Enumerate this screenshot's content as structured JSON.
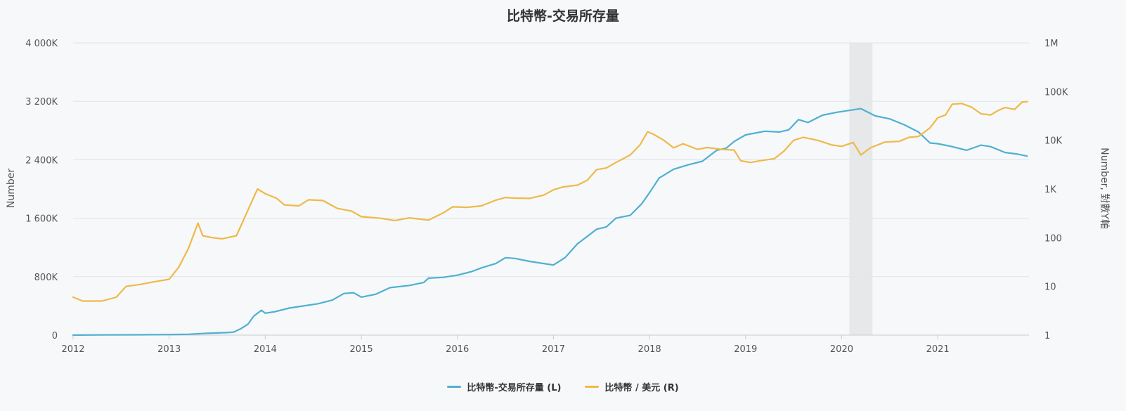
{
  "chart_data": {
    "type": "line",
    "title": "比特幣-交易所存量",
    "y_left": {
      "label": "Number",
      "range": [
        0,
        4000000
      ],
      "ticks": [
        0,
        800000,
        1600000,
        2400000,
        3200000,
        4000000
      ],
      "tick_labels": [
        "0",
        "800K",
        "1 600K",
        "2 400K",
        "3 200K",
        "4 000K"
      ]
    },
    "y_right": {
      "label": "Number, 對數Y軸",
      "scale": "log",
      "range": [
        1,
        1000000
      ],
      "ticks": [
        1,
        10,
        100,
        1000,
        10000,
        100000,
        1000000
      ],
      "tick_labels": [
        "1",
        "10",
        "100",
        "1K",
        "10K",
        "100K",
        "1M"
      ]
    },
    "x_axis": {
      "range": [
        2012,
        2021.95
      ],
      "ticks": [
        2012,
        2013,
        2014,
        2015,
        2016,
        2017,
        2018,
        2019,
        2020,
        2021
      ],
      "tick_labels": [
        "2012",
        "2013",
        "2014",
        "2015",
        "2016",
        "2017",
        "2018",
        "2019",
        "2020",
        "2021"
      ]
    },
    "grid": true,
    "shaded_band": [
      2020.08,
      2020.32
    ],
    "legend_position": "bottom-center",
    "series": [
      {
        "name": "比特幣-交易所存量 (L)",
        "axis": "left",
        "color": "#4fb0d0",
        "points": [
          [
            2012.0,
            0
          ],
          [
            2012.3,
            3000
          ],
          [
            2012.7,
            5000
          ],
          [
            2013.0,
            8000
          ],
          [
            2013.2,
            12000
          ],
          [
            2013.4,
            25000
          ],
          [
            2013.6,
            35000
          ],
          [
            2013.67,
            40000
          ],
          [
            2013.75,
            90000
          ],
          [
            2013.82,
            150000
          ],
          [
            2013.88,
            260000
          ],
          [
            2013.96,
            340000
          ],
          [
            2014.0,
            300000
          ],
          [
            2014.1,
            320000
          ],
          [
            2014.25,
            370000
          ],
          [
            2014.4,
            400000
          ],
          [
            2014.55,
            430000
          ],
          [
            2014.7,
            480000
          ],
          [
            2014.82,
            570000
          ],
          [
            2014.92,
            580000
          ],
          [
            2015.0,
            520000
          ],
          [
            2015.15,
            560000
          ],
          [
            2015.3,
            650000
          ],
          [
            2015.5,
            680000
          ],
          [
            2015.65,
            720000
          ],
          [
            2015.7,
            780000
          ],
          [
            2015.85,
            790000
          ],
          [
            2016.0,
            820000
          ],
          [
            2016.15,
            870000
          ],
          [
            2016.25,
            920000
          ],
          [
            2016.4,
            980000
          ],
          [
            2016.5,
            1060000
          ],
          [
            2016.6,
            1050000
          ],
          [
            2016.75,
            1010000
          ],
          [
            2016.9,
            980000
          ],
          [
            2017.0,
            960000
          ],
          [
            2017.12,
            1060000
          ],
          [
            2017.25,
            1250000
          ],
          [
            2017.35,
            1350000
          ],
          [
            2017.45,
            1450000
          ],
          [
            2017.55,
            1480000
          ],
          [
            2017.65,
            1600000
          ],
          [
            2017.8,
            1640000
          ],
          [
            2017.92,
            1800000
          ],
          [
            2018.0,
            1950000
          ],
          [
            2018.1,
            2150000
          ],
          [
            2018.25,
            2270000
          ],
          [
            2018.4,
            2330000
          ],
          [
            2018.55,
            2380000
          ],
          [
            2018.7,
            2530000
          ],
          [
            2018.8,
            2560000
          ],
          [
            2018.88,
            2650000
          ],
          [
            2019.0,
            2740000
          ],
          [
            2019.2,
            2790000
          ],
          [
            2019.35,
            2780000
          ],
          [
            2019.45,
            2810000
          ],
          [
            2019.55,
            2950000
          ],
          [
            2019.65,
            2910000
          ],
          [
            2019.8,
            3010000
          ],
          [
            2019.95,
            3050000
          ],
          [
            2020.1,
            3080000
          ],
          [
            2020.2,
            3100000
          ],
          [
            2020.35,
            3000000
          ],
          [
            2020.5,
            2960000
          ],
          [
            2020.65,
            2880000
          ],
          [
            2020.8,
            2780000
          ],
          [
            2020.92,
            2630000
          ],
          [
            2021.0,
            2620000
          ],
          [
            2021.15,
            2580000
          ],
          [
            2021.3,
            2530000
          ],
          [
            2021.45,
            2600000
          ],
          [
            2021.55,
            2580000
          ],
          [
            2021.7,
            2500000
          ],
          [
            2021.82,
            2480000
          ],
          [
            2021.93,
            2450000
          ]
        ]
      },
      {
        "name": "比特幣 / 美元 (R)",
        "axis": "right",
        "color": "#efb94a",
        "points": [
          [
            2012.0,
            6
          ],
          [
            2012.1,
            5
          ],
          [
            2012.3,
            5
          ],
          [
            2012.45,
            6
          ],
          [
            2012.55,
            10
          ],
          [
            2012.7,
            11
          ],
          [
            2012.8,
            12
          ],
          [
            2012.9,
            13
          ],
          [
            2013.0,
            14
          ],
          [
            2013.1,
            25
          ],
          [
            2013.2,
            60
          ],
          [
            2013.3,
            200
          ],
          [
            2013.35,
            110
          ],
          [
            2013.45,
            100
          ],
          [
            2013.55,
            95
          ],
          [
            2013.7,
            110
          ],
          [
            2013.85,
            500
          ],
          [
            2013.92,
            1000
          ],
          [
            2014.0,
            800
          ],
          [
            2014.12,
            640
          ],
          [
            2014.2,
            470
          ],
          [
            2014.35,
            450
          ],
          [
            2014.45,
            600
          ],
          [
            2014.6,
            580
          ],
          [
            2014.75,
            400
          ],
          [
            2014.9,
            350
          ],
          [
            2015.0,
            270
          ],
          [
            2015.2,
            250
          ],
          [
            2015.35,
            225
          ],
          [
            2015.5,
            255
          ],
          [
            2015.7,
            230
          ],
          [
            2015.85,
            320
          ],
          [
            2015.95,
            430
          ],
          [
            2016.1,
            420
          ],
          [
            2016.25,
            450
          ],
          [
            2016.4,
            590
          ],
          [
            2016.5,
            670
          ],
          [
            2016.6,
            650
          ],
          [
            2016.75,
            640
          ],
          [
            2016.9,
            750
          ],
          [
            2017.0,
            960
          ],
          [
            2017.1,
            1100
          ],
          [
            2017.25,
            1200
          ],
          [
            2017.35,
            1500
          ],
          [
            2017.45,
            2500
          ],
          [
            2017.55,
            2700
          ],
          [
            2017.65,
            3500
          ],
          [
            2017.8,
            5000
          ],
          [
            2017.9,
            8000
          ],
          [
            2017.98,
            15000
          ],
          [
            2018.05,
            13000
          ],
          [
            2018.15,
            10000
          ],
          [
            2018.25,
            7000
          ],
          [
            2018.35,
            8500
          ],
          [
            2018.5,
            6500
          ],
          [
            2018.6,
            7100
          ],
          [
            2018.75,
            6500
          ],
          [
            2018.88,
            6300
          ],
          [
            2018.95,
            3800
          ],
          [
            2019.05,
            3500
          ],
          [
            2019.15,
            3800
          ],
          [
            2019.3,
            4200
          ],
          [
            2019.4,
            6000
          ],
          [
            2019.5,
            10000
          ],
          [
            2019.6,
            11500
          ],
          [
            2019.75,
            10000
          ],
          [
            2019.9,
            8000
          ],
          [
            2020.0,
            7500
          ],
          [
            2020.12,
            9000
          ],
          [
            2020.2,
            5000
          ],
          [
            2020.3,
            7000
          ],
          [
            2020.45,
            9200
          ],
          [
            2020.6,
            9500
          ],
          [
            2020.7,
            11500
          ],
          [
            2020.8,
            12000
          ],
          [
            2020.92,
            18000
          ],
          [
            2021.0,
            29000
          ],
          [
            2021.08,
            33000
          ],
          [
            2021.15,
            55000
          ],
          [
            2021.25,
            57000
          ],
          [
            2021.35,
            48000
          ],
          [
            2021.45,
            35000
          ],
          [
            2021.55,
            33000
          ],
          [
            2021.62,
            40000
          ],
          [
            2021.7,
            47000
          ],
          [
            2021.8,
            43000
          ],
          [
            2021.88,
            61000
          ],
          [
            2021.93,
            62000
          ]
        ]
      }
    ]
  }
}
